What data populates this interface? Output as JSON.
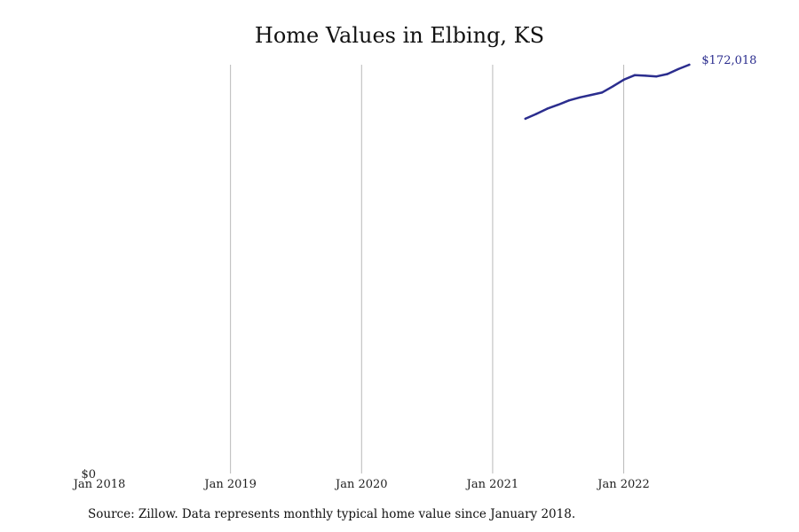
{
  "chart_data": {
    "type": "line",
    "title": "Home Values in Elbing, KS",
    "xlabel": "",
    "ylabel": "",
    "x_ticks": [
      "Jan 2018",
      "Jan 2019",
      "Jan 2020",
      "Jan 2021",
      "Jan 2022"
    ],
    "y_ticks": [
      "$0"
    ],
    "xlim": [
      "2018-01",
      "2022-09"
    ],
    "ylim": [
      0,
      172018
    ],
    "grid": "vertical",
    "series": [
      {
        "color": "#2b2d8e",
        "points": [
          {
            "x": "2021-04",
            "y": 149300
          },
          {
            "x": "2021-05",
            "y": 151300
          },
          {
            "x": "2021-06",
            "y": 153500
          },
          {
            "x": "2021-07",
            "y": 155200
          },
          {
            "x": "2021-08",
            "y": 157000
          },
          {
            "x": "2021-09",
            "y": 158300
          },
          {
            "x": "2021-10",
            "y": 159300
          },
          {
            "x": "2021-11",
            "y": 160300
          },
          {
            "x": "2021-12",
            "y": 162900
          },
          {
            "x": "2022-01",
            "y": 165700
          },
          {
            "x": "2022-02",
            "y": 167600
          },
          {
            "x": "2022-03",
            "y": 167400
          },
          {
            "x": "2022-04",
            "y": 167100
          },
          {
            "x": "2022-05",
            "y": 168100
          },
          {
            "x": "2022-06",
            "y": 170200
          },
          {
            "x": "2022-07",
            "y": 172018
          }
        ]
      }
    ],
    "end_label": "$172,018",
    "source": "Source: Zillow. Data represents monthly typical home value since January 2018."
  }
}
